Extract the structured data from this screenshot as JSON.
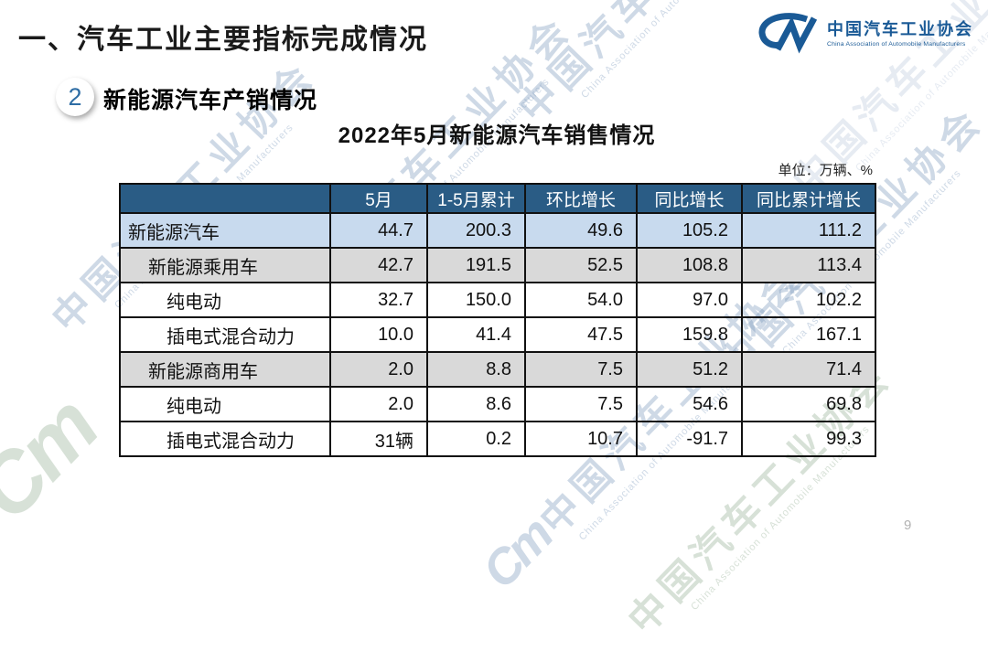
{
  "page": {
    "heading": "一、汽车工业主要指标完成情况",
    "section_badge": "2",
    "section_title": "新能源汽车产销情况",
    "page_number": "9"
  },
  "logo": {
    "mark": "CM",
    "name_cn": "中国汽车工业协会",
    "name_en": "China Association of Automobile Manufacturers"
  },
  "table": {
    "title": "2022年5月新能源汽车销售情况",
    "unit_note": "单位：万辆、%",
    "columns": [
      "",
      "5月",
      "1-5月累计",
      "环比增长",
      "同比增长",
      "同比累计增长"
    ],
    "rows": [
      {
        "label": "新能源汽车",
        "indent": 0,
        "style": "blue",
        "values": [
          "44.7",
          "200.3",
          "49.6",
          "105.2",
          "111.2"
        ]
      },
      {
        "label": "新能源乘用车",
        "indent": 1,
        "style": "gray",
        "values": [
          "42.7",
          "191.5",
          "52.5",
          "108.8",
          "113.4"
        ]
      },
      {
        "label": "纯电动",
        "indent": 2,
        "style": "white",
        "values": [
          "32.7",
          "150.0",
          "54.0",
          "97.0",
          "102.2"
        ]
      },
      {
        "label": "插电式混合动力",
        "indent": 2,
        "style": "white",
        "values": [
          "10.0",
          "41.4",
          "47.5",
          "159.8",
          "167.1"
        ]
      },
      {
        "label": "新能源商用车",
        "indent": 1,
        "style": "gray",
        "values": [
          "2.0",
          "8.8",
          "7.5",
          "51.2",
          "71.4"
        ]
      },
      {
        "label": "纯电动",
        "indent": 2,
        "style": "white",
        "values": [
          "2.0",
          "8.6",
          "7.5",
          "54.6",
          "69.8"
        ]
      },
      {
        "label": "插电式混合动力",
        "indent": 2,
        "style": "white",
        "values": [
          "31辆",
          "0.2",
          "10.7",
          "-91.7",
          "99.3"
        ]
      }
    ]
  },
  "watermark": {
    "mark": "Cm",
    "text_cn": "中国汽车工业协会",
    "text_en": "China Association of Automobile Manufacturers"
  },
  "colors": {
    "table_header_bg": "#2a5c85",
    "row_highlight_blue": "#c8daee",
    "row_gray": "#d9d9d9",
    "logo_blue": "#1a5a96",
    "badge_number_blue": "#2e6da4"
  }
}
